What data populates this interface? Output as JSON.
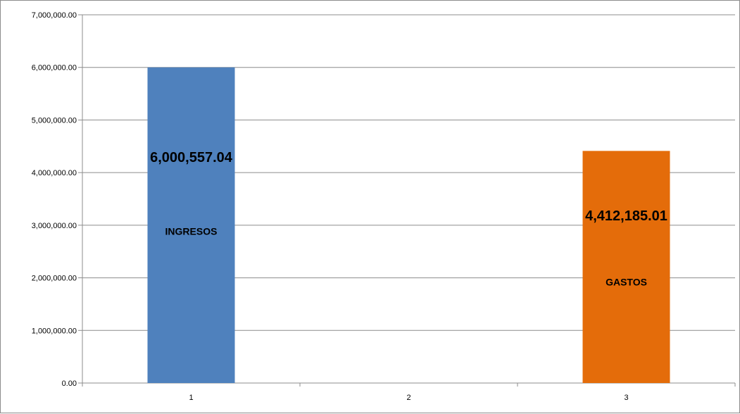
{
  "chart_data": {
    "type": "bar",
    "categories": [
      "1",
      "2",
      "3"
    ],
    "values": [
      6000557.04,
      null,
      4412185.01
    ],
    "value_labels": [
      "6,000,557.04",
      "",
      "4,412,185.01"
    ],
    "category_labels": [
      "INGRESOS",
      "",
      "GASTOS"
    ],
    "bar_colors": [
      "#4f81bd",
      null,
      "#e46c0a"
    ],
    "y_ticks": [
      "0.00",
      "1,000,000.00",
      "2,000,000.00",
      "3,000,000.00",
      "4,000,000.00",
      "5,000,000.00",
      "6,000,000.00",
      "7,000,000.00"
    ],
    "ylim": [
      0,
      7000000
    ],
    "grid": true,
    "title": "",
    "xlabel": "",
    "ylabel": ""
  },
  "colors": {
    "gridline": "#8c8c8c",
    "axis": "#8c8c8c"
  }
}
